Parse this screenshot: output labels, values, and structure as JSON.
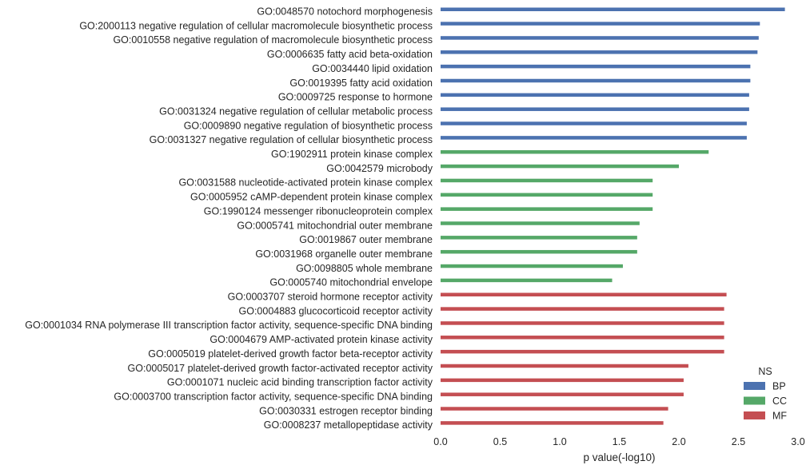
{
  "chart_data": {
    "type": "bar",
    "orientation": "horizontal",
    "xlabel": "p value(-log10)",
    "ylabel": "",
    "xlim": [
      0.0,
      3.0
    ],
    "xticks": [
      "0.0",
      "0.5",
      "1.0",
      "1.5",
      "2.0",
      "2.5",
      "3.0"
    ],
    "grid": false,
    "legend": {
      "title": "NS",
      "position": "bottom-right",
      "entries": [
        {
          "name": "BP",
          "color": "#4c72b0"
        },
        {
          "name": "CC",
          "color": "#55a868"
        },
        {
          "name": "MF",
          "color": "#c44e52"
        }
      ]
    },
    "categories": [
      {
        "label": "GO:0048570 notochord morphogenesis",
        "value": 2.89,
        "ns": "BP"
      },
      {
        "label": "GO:2000113 negative regulation of cellular macromolecule biosynthetic process",
        "value": 2.68,
        "ns": "BP"
      },
      {
        "label": "GO:0010558 negative regulation of macromolecule biosynthetic process",
        "value": 2.67,
        "ns": "BP"
      },
      {
        "label": "GO:0006635 fatty acid beta-oxidation",
        "value": 2.66,
        "ns": "BP"
      },
      {
        "label": "GO:0034440 lipid oxidation",
        "value": 2.6,
        "ns": "BP"
      },
      {
        "label": "GO:0019395 fatty acid oxidation",
        "value": 2.6,
        "ns": "BP"
      },
      {
        "label": "GO:0009725 response to hormone",
        "value": 2.59,
        "ns": "BP"
      },
      {
        "label": "GO:0031324 negative regulation of cellular metabolic process",
        "value": 2.59,
        "ns": "BP"
      },
      {
        "label": "GO:0009890 negative regulation of biosynthetic process",
        "value": 2.57,
        "ns": "BP"
      },
      {
        "label": "GO:0031327 negative regulation of cellular biosynthetic process",
        "value": 2.57,
        "ns": "BP"
      },
      {
        "label": "GO:1902911 protein kinase complex",
        "value": 2.25,
        "ns": "CC"
      },
      {
        "label": "GO:0042579 microbody",
        "value": 2.0,
        "ns": "CC"
      },
      {
        "label": "GO:0031588 nucleotide-activated protein kinase complex",
        "value": 1.78,
        "ns": "CC"
      },
      {
        "label": "GO:0005952 cAMP-dependent protein kinase complex",
        "value": 1.78,
        "ns": "CC"
      },
      {
        "label": "GO:1990124 messenger ribonucleoprotein complex",
        "value": 1.78,
        "ns": "CC"
      },
      {
        "label": "GO:0005741 mitochondrial outer membrane",
        "value": 1.67,
        "ns": "CC"
      },
      {
        "label": "GO:0019867 outer membrane",
        "value": 1.65,
        "ns": "CC"
      },
      {
        "label": "GO:0031968 organelle outer membrane",
        "value": 1.65,
        "ns": "CC"
      },
      {
        "label": "GO:0098805 whole membrane",
        "value": 1.53,
        "ns": "CC"
      },
      {
        "label": "GO:0005740 mitochondrial envelope",
        "value": 1.44,
        "ns": "CC"
      },
      {
        "label": "GO:0003707 steroid hormone receptor activity",
        "value": 2.4,
        "ns": "MF"
      },
      {
        "label": "GO:0004883 glucocorticoid receptor activity",
        "value": 2.38,
        "ns": "MF"
      },
      {
        "label": "GO:0001034 RNA polymerase III transcription factor activity, sequence-specific DNA binding",
        "value": 2.38,
        "ns": "MF"
      },
      {
        "label": "GO:0004679 AMP-activated protein kinase activity",
        "value": 2.38,
        "ns": "MF"
      },
      {
        "label": "GO:0005019 platelet-derived growth factor beta-receptor activity",
        "value": 2.38,
        "ns": "MF"
      },
      {
        "label": "GO:0005017 platelet-derived growth factor-activated receptor activity",
        "value": 2.08,
        "ns": "MF"
      },
      {
        "label": "GO:0001071 nucleic acid binding transcription factor activity",
        "value": 2.04,
        "ns": "MF"
      },
      {
        "label": "GO:0003700 transcription factor activity, sequence-specific DNA binding",
        "value": 2.04,
        "ns": "MF"
      },
      {
        "label": "GO:0030331 estrogen receptor binding",
        "value": 1.91,
        "ns": "MF"
      },
      {
        "label": "GO:0008237 metallopeptidase activity",
        "value": 1.87,
        "ns": "MF"
      }
    ]
  }
}
